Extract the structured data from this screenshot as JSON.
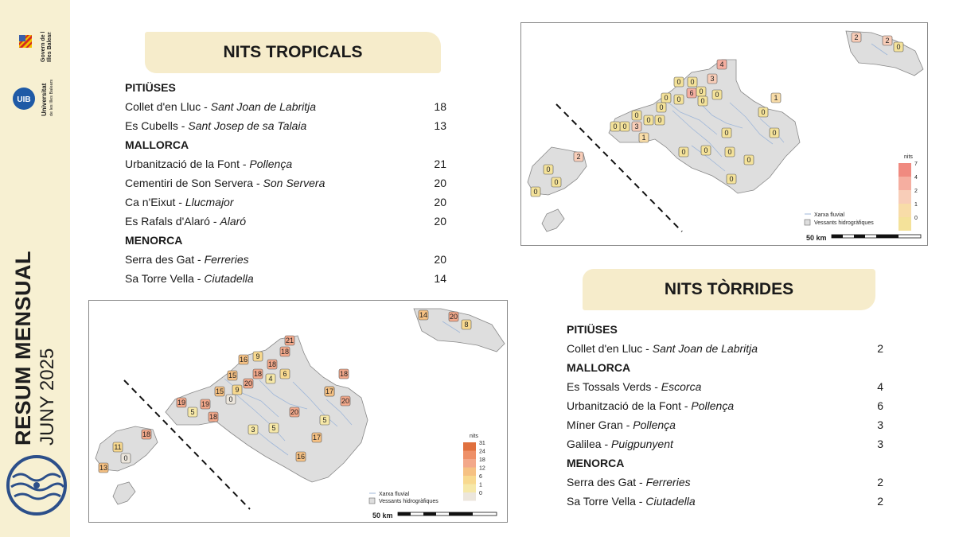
{
  "sidebar": {
    "title": "RESUM MENSUAL",
    "subtitle": "JUNY 2025",
    "govern_logo_text": [
      "Govern de les",
      "Illes Balears"
    ],
    "uib_logo_text": [
      "Universitat",
      "de les Illes Balears"
    ]
  },
  "tropicals": {
    "title": "NITS TROPICALS",
    "rows": [
      {
        "type": "region",
        "label": "PITIÜSES"
      },
      {
        "type": "station",
        "station": "Collet d'en Lluc - ",
        "municipality": "Sant Joan de Labritja",
        "italic": false,
        "value": "18"
      },
      {
        "type": "station",
        "station": "Es Cubells - ",
        "municipality": "Sant Josep de sa Talaia",
        "value": "13"
      },
      {
        "type": "region",
        "label": "MALLORCA"
      },
      {
        "type": "station",
        "station": "Urbanització de la Font - ",
        "municipality": "Pollença",
        "value": "21"
      },
      {
        "type": "station",
        "station": "Cementiri de Son Servera - ",
        "municipality": "Son Servera",
        "value": "20"
      },
      {
        "type": "station",
        "station": "Ca n'Eixut - ",
        "municipality": "Llucmajor",
        "value": "20"
      },
      {
        "type": "station",
        "station": "Es Rafals d'Alaró - ",
        "municipality": "Alaró",
        "value": "20"
      },
      {
        "type": "region",
        "label": "MENORCA"
      },
      {
        "type": "station",
        "station": "Serra des Gat - ",
        "municipality": "Ferreries",
        "value": "20"
      },
      {
        "type": "station",
        "station": "Sa Torre Vella - ",
        "municipality": "Ciutadella",
        "value": "14"
      }
    ]
  },
  "torrides": {
    "title": "NITS TÒRRIDES",
    "rows": [
      {
        "type": "region",
        "label": "PITIÜSES"
      },
      {
        "type": "station",
        "station": "Collet d'en Lluc - ",
        "municipality": "Sant Joan de Labritja",
        "value": "2"
      },
      {
        "type": "region",
        "label": "MALLORCA"
      },
      {
        "type": "station",
        "station": "Es Tossals Verds - ",
        "municipality": "Escorca",
        "value": "4"
      },
      {
        "type": "station",
        "station": "Urbanització de la Font - ",
        "municipality": "Pollença",
        "value": "6"
      },
      {
        "type": "station",
        "station": "Míner Gran - ",
        "municipality": "Pollença",
        "value": "3"
      },
      {
        "type": "station",
        "station": "Galilea - ",
        "municipality": "Puigpunyent",
        "value": "3"
      },
      {
        "type": "region",
        "label": "MENORCA"
      },
      {
        "type": "station",
        "station": "Serra des Gat - ",
        "municipality": "Ferreries",
        "value": "2"
      },
      {
        "type": "station",
        "station": "Sa Torre Vella - ",
        "municipality": "Ciutadella",
        "value": "2"
      }
    ]
  },
  "map_torrides": {
    "legend_title": "nits",
    "legend_levels": [
      "7",
      "4",
      "2",
      "1",
      "0"
    ],
    "legend_colors": [
      "#f08a80",
      "#f5aea0",
      "#f8cdb8",
      "#f8dca8",
      "#f4e29a"
    ],
    "legend_fluvial": "Xarxa fluvial",
    "legend_vessants": "Vessants hidrogràfiques",
    "scale_label": "50 km",
    "station_values": [
      "2",
      "2",
      "0",
      "4",
      "0",
      "0",
      "3",
      "6",
      "0",
      "0",
      "0",
      "0",
      "0",
      "1",
      "0",
      "0",
      "0",
      "0",
      "3",
      "0",
      "0",
      "1",
      "0",
      "0",
      "0",
      "0",
      "0",
      "0",
      "0",
      "0",
      "2",
      "0",
      "0",
      "0"
    ]
  },
  "map_tropicals": {
    "legend_title": "nits",
    "legend_levels": [
      "31",
      "24",
      "18",
      "12",
      "6",
      "1",
      "0"
    ],
    "legend_colors": [
      "#e0703e",
      "#ee9068",
      "#f3a88a",
      "#f6c183",
      "#f8d98f",
      "#f6e8a8",
      "#ece6dc"
    ],
    "legend_fluvial": "Xarxa fluvial",
    "legend_vessants": "Vessants hidrogràfiques",
    "scale_label": "50 km",
    "station_values": [
      "14",
      "20",
      "8",
      "21",
      "18",
      "16",
      "9",
      "18",
      "18",
      "15",
      "6",
      "4",
      "20",
      "17",
      "15",
      "9",
      "19",
      "0",
      "19",
      "5",
      "18",
      "18",
      "17",
      "20",
      "3",
      "5",
      "20",
      "5",
      "17",
      "16",
      "18",
      "11",
      "0",
      "13"
    ]
  }
}
